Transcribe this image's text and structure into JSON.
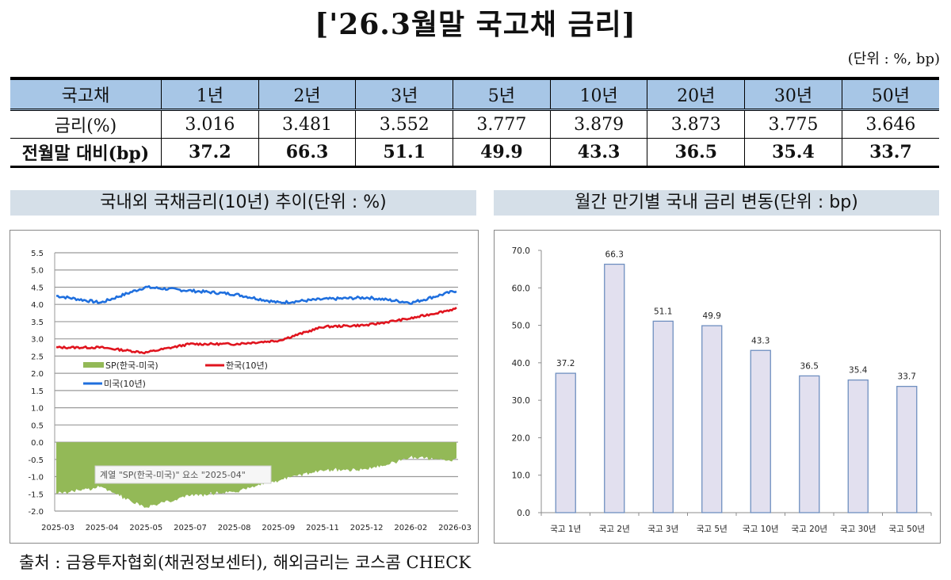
{
  "title": "['26.3월말 국고채 금리]",
  "unit_note": "(단위 : %, bp)",
  "table": {
    "header_label": "국고채",
    "tenors": [
      "1년",
      "2년",
      "3년",
      "5년",
      "10년",
      "20년",
      "30년",
      "50년"
    ],
    "rows": [
      {
        "label": "금리(%)",
        "values": [
          "3.016",
          "3.481",
          "3.552",
          "3.777",
          "3.879",
          "3.873",
          "3.775",
          "3.646"
        ]
      },
      {
        "label": "전월말 대비(bp)",
        "values": [
          "37.2",
          "66.3",
          "51.1",
          "49.9",
          "43.3",
          "36.5",
          "35.4",
          "33.7"
        ]
      }
    ]
  },
  "left_section_title": "국내외 국채금리(10년) 추이(단위 : %)",
  "right_section_title": "월간 만기별 국내 금리 변동(단위 : bp)",
  "footer": "출처 : 금융투자협회(채권정보센터), 해외금리는 코스콤 CHECK",
  "colors": {
    "table_header": "#a7c6e6",
    "section_header": "#d5dfe8",
    "korea": "#e0141e",
    "us": "#1f6fde",
    "spread": "#93b957",
    "bar_fill": "#e2e0ef",
    "bar_border": "#6f8fc0"
  },
  "chart_data": [
    {
      "type": "line",
      "title": "국내외 국채금리(10년) 추이(단위 : %)",
      "xlabel": "",
      "ylabel": "",
      "ylim": [
        -2.0,
        5.5
      ],
      "yticks": [
        "5.5",
        "5.0",
        "4.5",
        "4.0",
        "3.5",
        "3.0",
        "2.5",
        "2.0",
        "1.5",
        "1.0",
        "0.5",
        "0.0",
        "-0.5",
        "-1.0",
        "-1.5",
        "-2.0"
      ],
      "x_tick_labels": [
        "2025-03",
        "2025-04",
        "2025-05",
        "2025-07",
        "2025-08",
        "2025-09",
        "2025-11",
        "2025-12",
        "2026-02",
        "2026-03"
      ],
      "grid": true,
      "legend": [
        {
          "name": "SP(한국-미국)",
          "kind": "area"
        },
        {
          "name": "한국(10년)",
          "kind": "line"
        },
        {
          "name": "미국(10년)",
          "kind": "line"
        }
      ],
      "tooltip": "계열 \"SP(한국-미국)\" 요소 \"2025-04\"",
      "series": [
        {
          "name": "미국(10년)",
          "x": [
            "2025-03",
            "2025-04",
            "2025-05",
            "2025-07",
            "2025-08",
            "2025-09",
            "2025-11",
            "2025-12",
            "2026-02",
            "2026-03"
          ],
          "values": [
            4.25,
            4.05,
            4.5,
            4.4,
            4.3,
            4.05,
            4.15,
            4.2,
            4.05,
            4.4
          ]
        },
        {
          "name": "한국(10년)",
          "x": [
            "2025-03",
            "2025-04",
            "2025-05",
            "2025-07",
            "2025-08",
            "2025-09",
            "2025-11",
            "2025-12",
            "2026-02",
            "2026-03"
          ],
          "values": [
            2.75,
            2.75,
            2.6,
            2.85,
            2.85,
            2.95,
            3.35,
            3.4,
            3.6,
            3.88
          ]
        },
        {
          "name": "SP(한국-미국)",
          "x": [
            "2025-03",
            "2025-04",
            "2025-05",
            "2025-07",
            "2025-08",
            "2025-09",
            "2025-11",
            "2025-12",
            "2026-02",
            "2026-03"
          ],
          "values": [
            -1.5,
            -1.3,
            -1.8,
            -1.55,
            -1.45,
            -1.1,
            -0.8,
            -0.8,
            -0.5,
            -0.5
          ]
        }
      ]
    },
    {
      "type": "bar",
      "title": "월간 만기별 국내 금리 변동(단위 : bp)",
      "categories": [
        "국고 1년",
        "국고 2년",
        "국고 3년",
        "국고 5년",
        "국고 10년",
        "국고 20년",
        "국고 30년",
        "국고 50년"
      ],
      "values": [
        37.2,
        66.3,
        51.1,
        49.9,
        43.3,
        36.5,
        35.4,
        33.7
      ],
      "data_labels": [
        "37.2",
        "66.3",
        "51.1",
        "49.9",
        "43.3",
        "36.5",
        "35.4",
        "33.7"
      ],
      "yticks": [
        "70.0",
        "60.0",
        "50.0",
        "40.0",
        "30.0",
        "20.0",
        "10.0",
        "0.0"
      ],
      "ylim": [
        0,
        70
      ],
      "xlabel": "",
      "ylabel": "",
      "grid": false
    }
  ]
}
